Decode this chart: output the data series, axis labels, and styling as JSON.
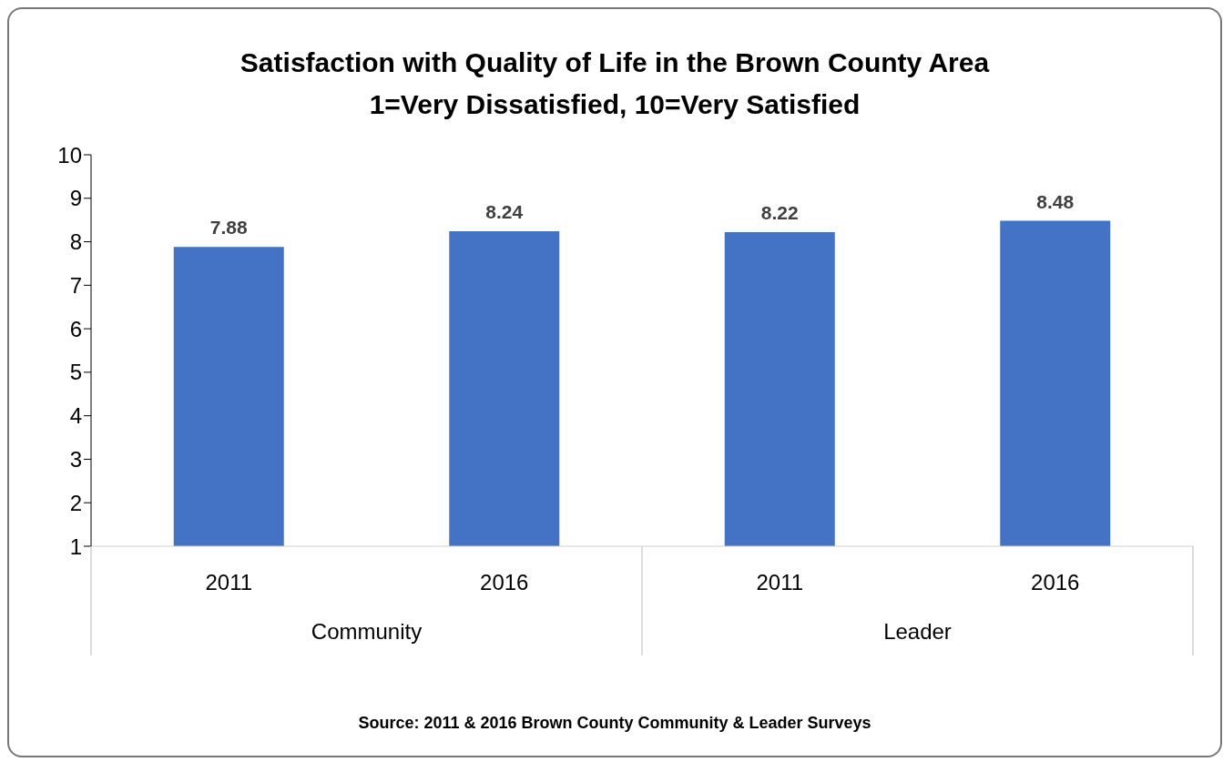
{
  "chart_data": {
    "type": "bar",
    "title": "Satisfaction with Quality of Life in the Brown County Area",
    "subtitle": "1=Very Dissatisfied, 10=Very Satisfied",
    "categories": [
      "2011",
      "2016",
      "2011",
      "2016"
    ],
    "values": [
      7.88,
      8.24,
      8.22,
      8.48
    ],
    "color": "#4472c4",
    "ylim": [
      1,
      10
    ],
    "yticks": [
      1,
      2,
      3,
      4,
      5,
      6,
      7,
      8,
      9,
      10
    ],
    "data_labels": true,
    "annotations": [
      "Community",
      "Leader",
      "Source: 2011 & 2016 Brown County Community & Leader Surveys"
    ]
  }
}
